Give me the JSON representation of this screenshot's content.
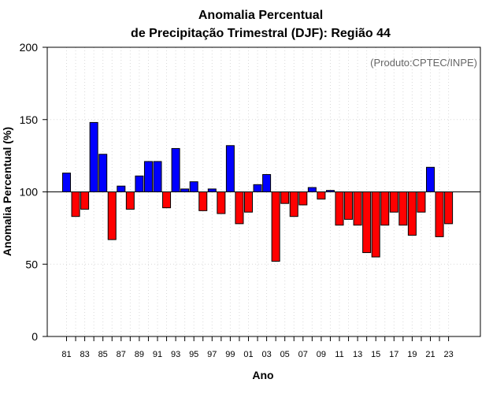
{
  "chart_data": {
    "type": "bar",
    "title_line1": "Anomalia Percentual",
    "title_line2": "de Precipitação Trimestral (DJF): Região 44",
    "xlabel": "Ano",
    "ylabel": "Anomalia Percentual (%)",
    "credit": "(Produto:CPTEC/INPE)",
    "baseline": 100,
    "ylim": [
      0,
      200
    ],
    "yticks": [
      0,
      50,
      100,
      150,
      200
    ],
    "xtick_labels": [
      "81",
      "83",
      "85",
      "87",
      "89",
      "91",
      "93",
      "95",
      "97",
      "99",
      "01",
      "03",
      "05",
      "07",
      "09",
      "11",
      "13",
      "15",
      "17",
      "19",
      "21",
      "23"
    ],
    "grid": true,
    "colors": {
      "above": "#0000ff",
      "below": "#ff0000",
      "outline": "#000000",
      "grid": "#d9d9d9"
    },
    "categories": [
      "81",
      "82",
      "83",
      "84",
      "85",
      "86",
      "87",
      "88",
      "89",
      "90",
      "91",
      "92",
      "93",
      "94",
      "95",
      "96",
      "97",
      "98",
      "99",
      "00",
      "01",
      "02",
      "03",
      "04",
      "05",
      "06",
      "07",
      "08",
      "09",
      "10",
      "11",
      "12",
      "13",
      "14",
      "15",
      "16",
      "17",
      "18",
      "19",
      "20",
      "21",
      "22",
      "23"
    ],
    "values": [
      113,
      83,
      88,
      148,
      126,
      67,
      104,
      88,
      111,
      121,
      121,
      89,
      130,
      102,
      107,
      87,
      102,
      85,
      132,
      78,
      86,
      105,
      112,
      52,
      92,
      83,
      91,
      103,
      95,
      101,
      77,
      81,
      77,
      58,
      55,
      77,
      86,
      77,
      70,
      86,
      117,
      69,
      78
    ]
  }
}
